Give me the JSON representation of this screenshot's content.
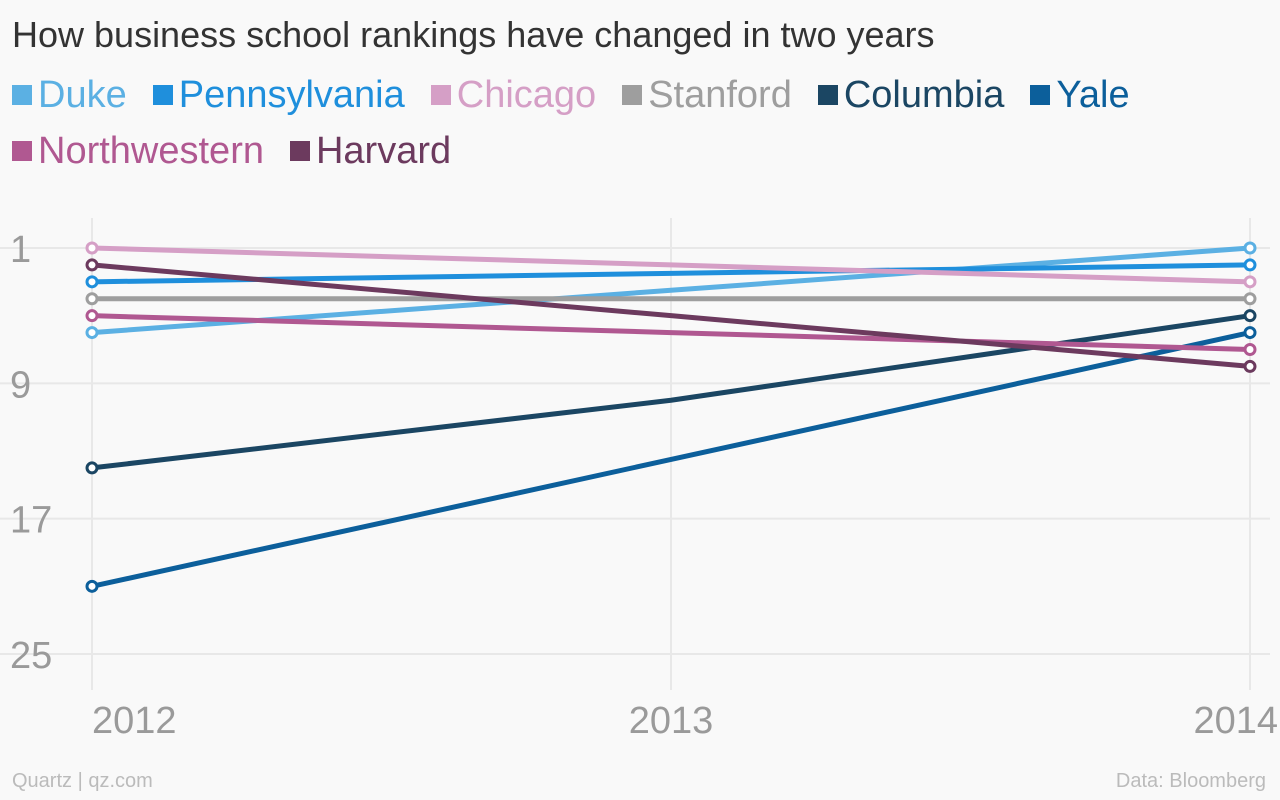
{
  "chart_data": {
    "type": "line",
    "title": "How business school rankings have changed in two years",
    "x": [
      "2012",
      "2013",
      "2014"
    ],
    "y_ticks": [
      "1",
      "9",
      "17",
      "25"
    ],
    "y_range": [
      1,
      25
    ],
    "y_inverted": true,
    "grid": true,
    "legend_position": "top-left",
    "series": [
      {
        "name": "Duke",
        "color": "#5bb0e3",
        "values": [
          6,
          3.5,
          1
        ]
      },
      {
        "name": "Pennsylvania",
        "color": "#1f8fdc",
        "values": [
          3,
          2.5,
          2
        ]
      },
      {
        "name": "Chicago",
        "color": "#d59fc6",
        "values": [
          1,
          2,
          3
        ]
      },
      {
        "name": "Stanford",
        "color": "#9e9e9e",
        "values": [
          4,
          4,
          4
        ]
      },
      {
        "name": "Columbia",
        "color": "#1b4663",
        "values": [
          14,
          10,
          5
        ]
      },
      {
        "name": "Yale",
        "color": "#0c5f9b",
        "values": [
          21,
          13.5,
          6
        ]
      },
      {
        "name": "Northwestern",
        "color": "#b05891",
        "values": [
          5,
          6,
          7
        ]
      },
      {
        "name": "Harvard",
        "color": "#6c3a5e",
        "values": [
          2,
          5,
          8
        ]
      }
    ]
  },
  "footer": {
    "source_left": "Quartz | qz.com",
    "source_right": "Data: Bloomberg"
  }
}
